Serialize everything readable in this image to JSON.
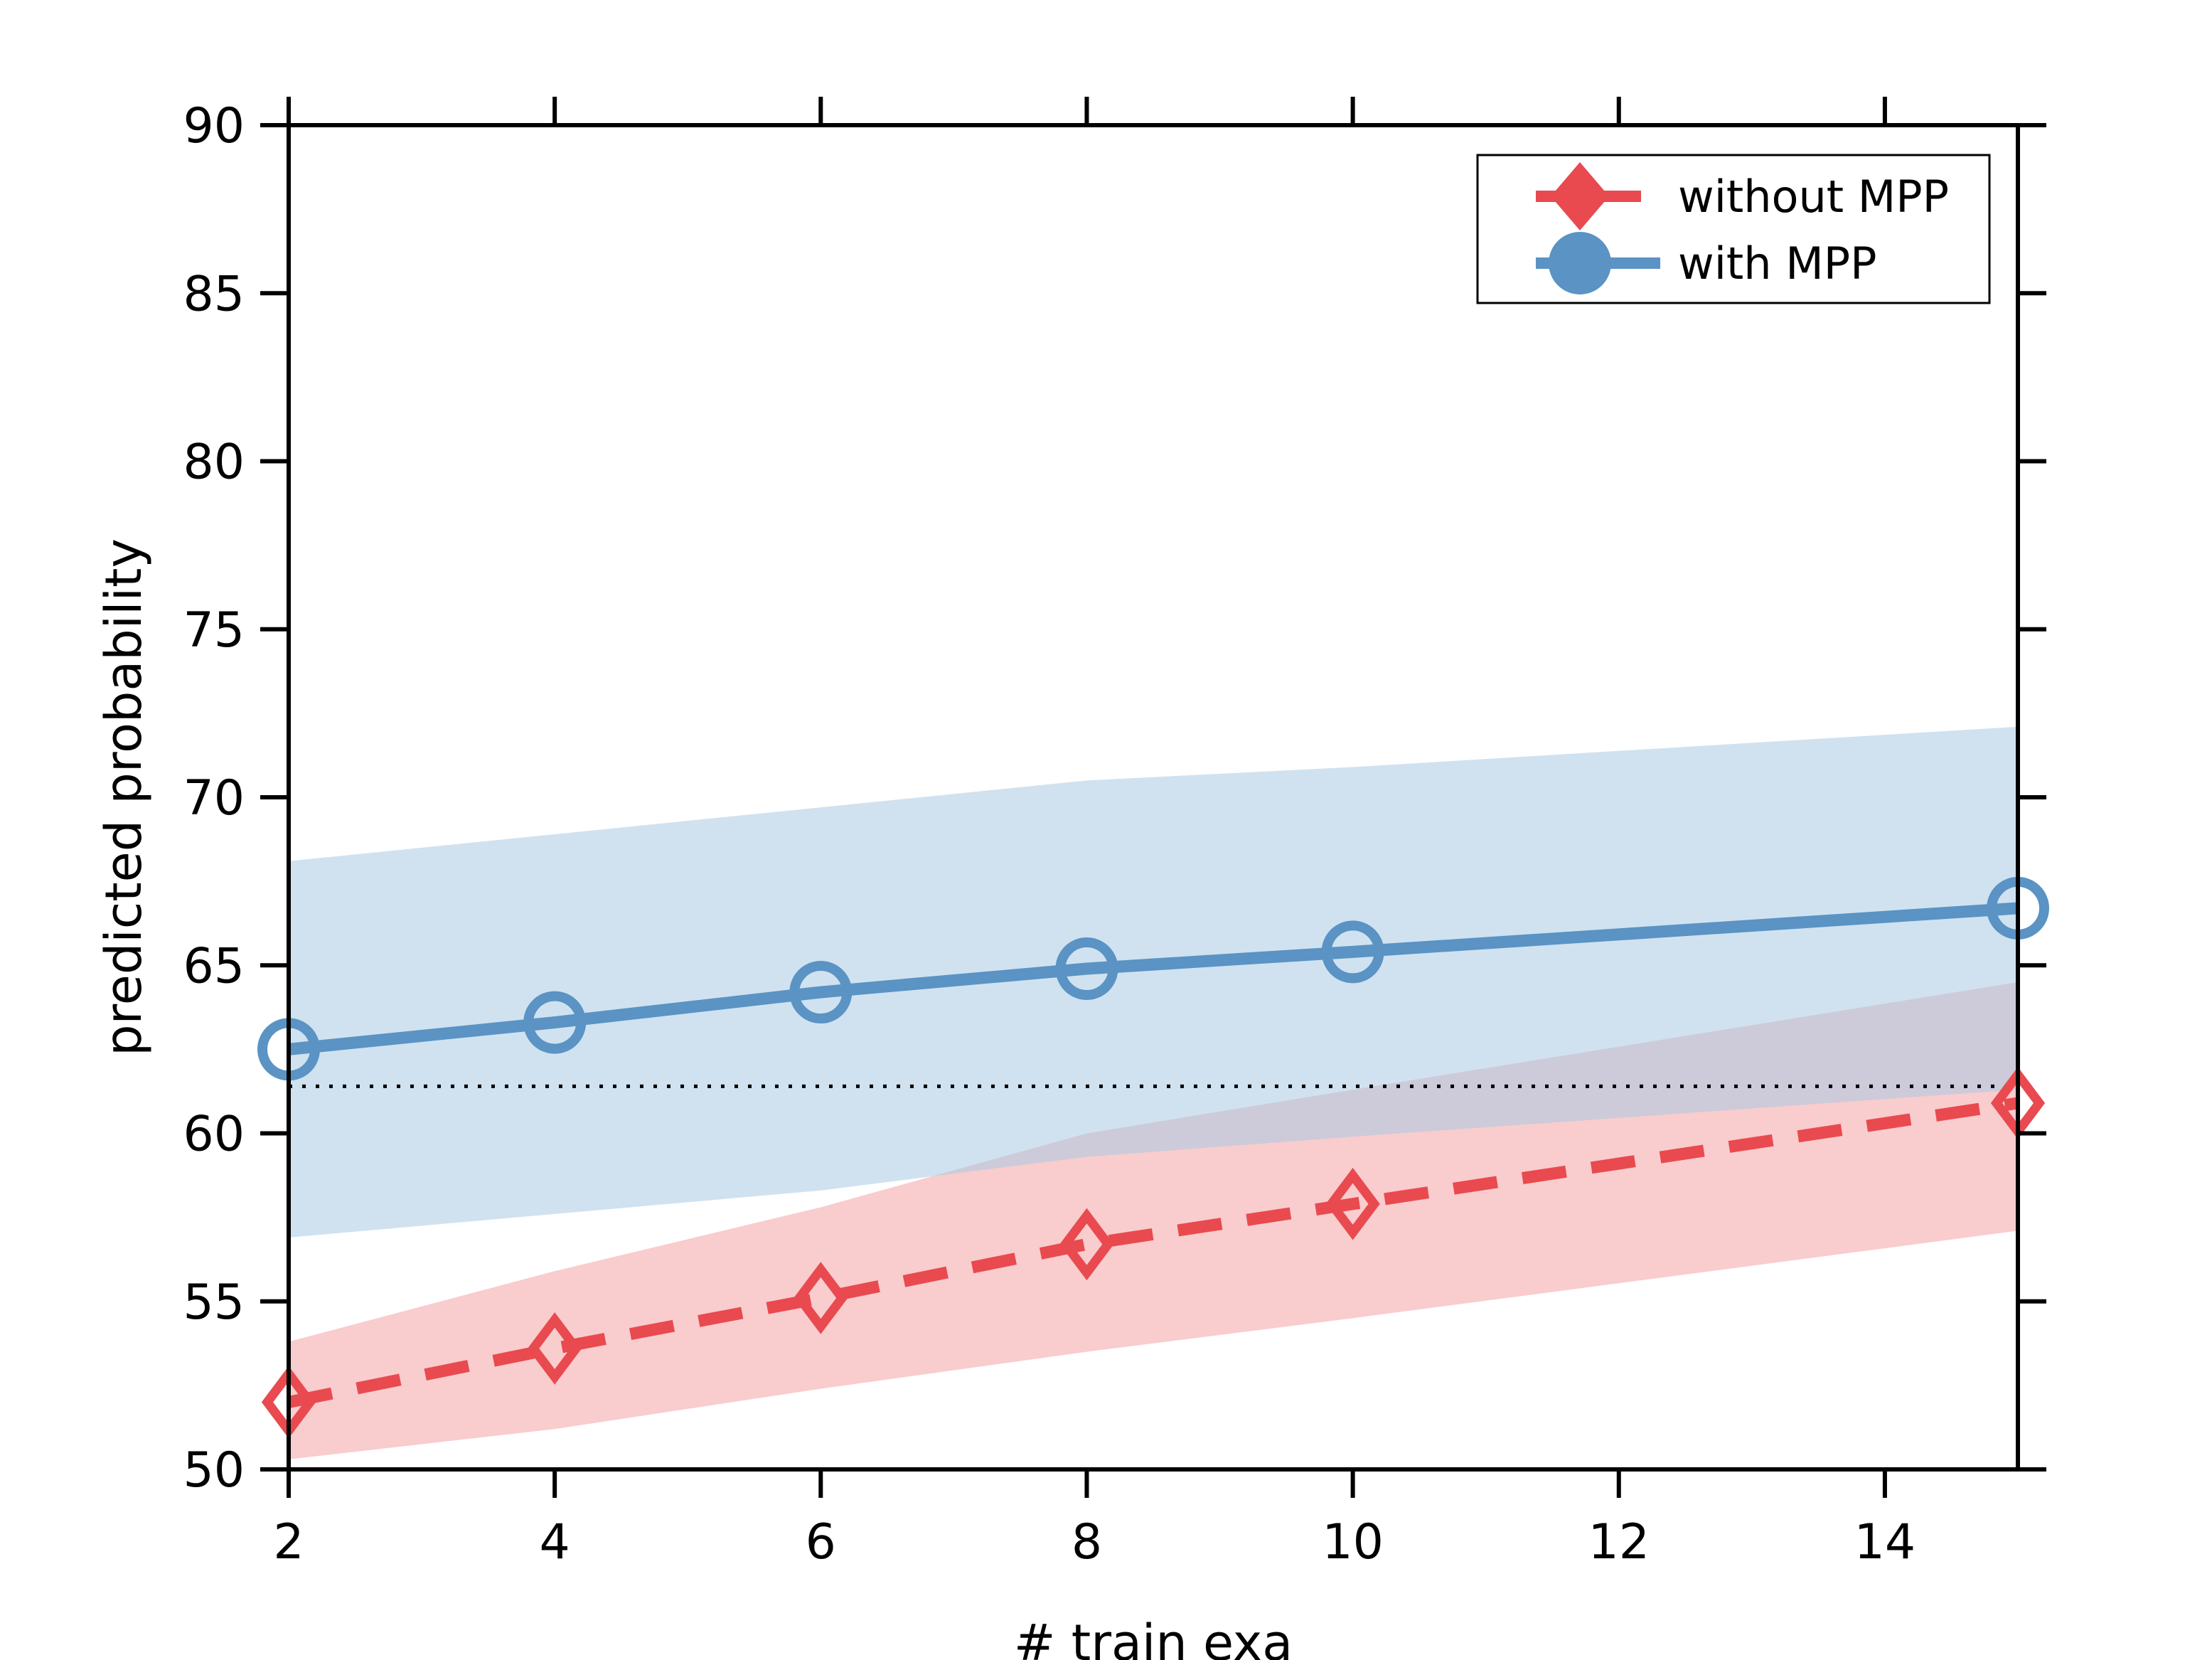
{
  "chart_data": {
    "type": "line",
    "xlabel": "# train exa",
    "ylabel": "predicted probability",
    "xlim": [
      2,
      15
    ],
    "ylim": [
      50,
      90
    ],
    "xticks": [
      2,
      4,
      6,
      8,
      10,
      12,
      14
    ],
    "yticks": [
      50,
      55,
      60,
      65,
      70,
      75,
      80,
      85,
      90
    ],
    "x": [
      2,
      4,
      6,
      8,
      10,
      15
    ],
    "reference_line": {
      "y": 61.4,
      "style": "dotted",
      "color": "#000000"
    },
    "legend_position": "top-right",
    "series": [
      {
        "name": "without MPP",
        "color": "#e84a4f",
        "band_color": "#f4a3a6",
        "line_style": "dashed",
        "marker": "diamond-open",
        "values": [
          52.0,
          53.6,
          55.1,
          56.7,
          57.9,
          60.9
        ],
        "band_upper": [
          53.8,
          55.9,
          57.8,
          60.0,
          61.3,
          64.5
        ],
        "band_lower": [
          50.3,
          51.2,
          52.4,
          53.5,
          54.5,
          57.1
        ]
      },
      {
        "name": "with MPP",
        "color": "#5a93c4",
        "band_color": "#a9cbe3",
        "line_style": "solid",
        "marker": "circle-open",
        "values": [
          62.5,
          63.3,
          64.2,
          64.9,
          65.4,
          66.7
        ],
        "band_upper": [
          68.1,
          68.9,
          69.7,
          70.5,
          70.9,
          72.1
        ],
        "band_lower": [
          56.9,
          57.6,
          58.3,
          59.3,
          59.9,
          61.3
        ]
      }
    ]
  }
}
